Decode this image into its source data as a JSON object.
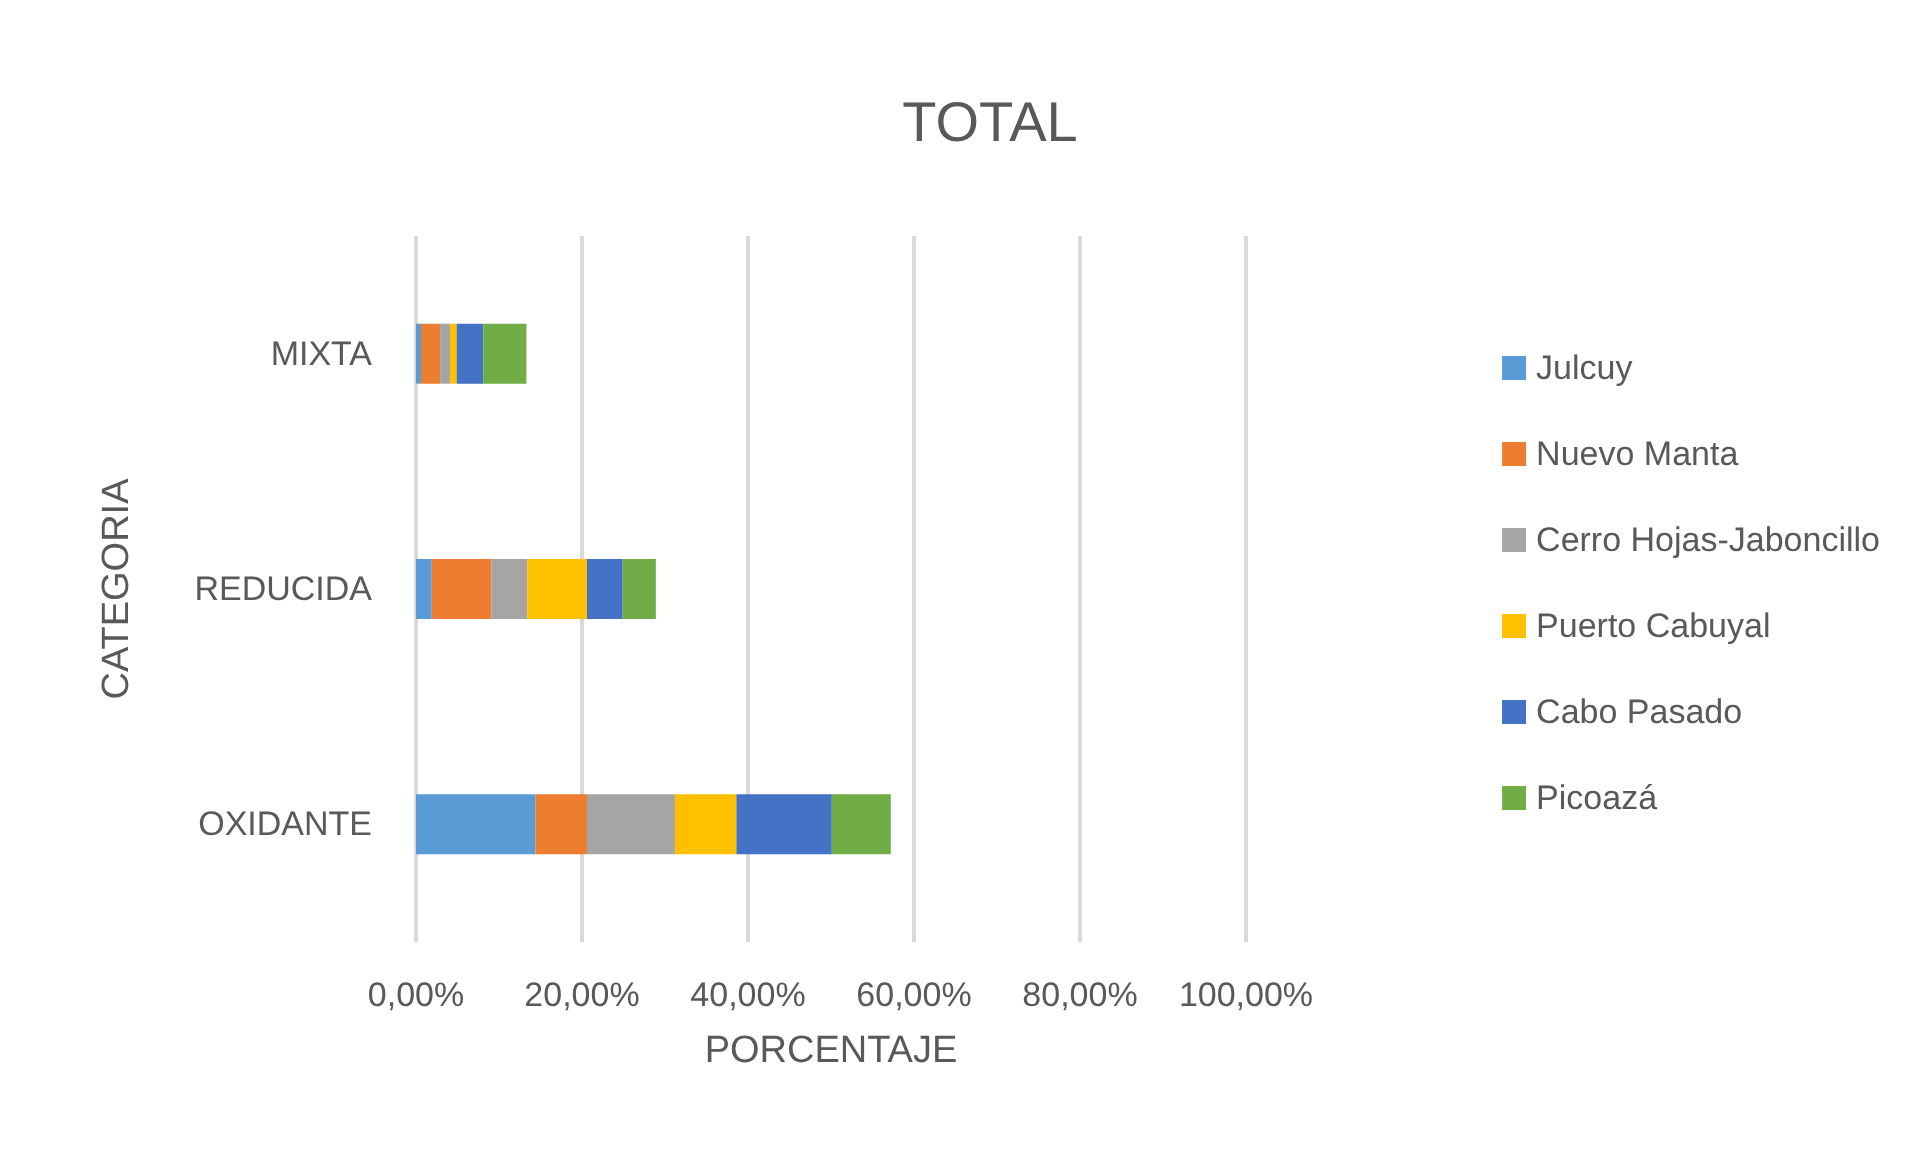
{
  "chart_data": {
    "type": "bar",
    "orientation": "horizontal",
    "stacked": true,
    "title": "TOTAL",
    "xlabel": "PORCENTAJE",
    "ylabel": "CATEGORIA",
    "categories": [
      "MIXTA",
      "REDUCIDA",
      "OXIDANTE"
    ],
    "series": [
      {
        "name": "Julcuy",
        "color": "#5b9bd5",
        "values": [
          0.6,
          1.9,
          14.4
        ]
      },
      {
        "name": "Nuevo Manta",
        "color": "#ed7d31",
        "values": [
          2.3,
          7.2,
          6.2
        ]
      },
      {
        "name": "Cerro Hojas-Jaboncillo",
        "color": "#a5a5a5",
        "values": [
          1.2,
          4.3,
          10.6
        ]
      },
      {
        "name": "Puerto Cabuyal",
        "color": "#ffc000",
        "values": [
          0.8,
          7.2,
          7.4
        ]
      },
      {
        "name": "Cabo Pasado",
        "color": "#4472c4",
        "values": [
          3.2,
          4.3,
          11.5
        ]
      },
      {
        "name": "Picoazá",
        "color": "#70ad47",
        "values": [
          5.2,
          4.0,
          7.1
        ]
      }
    ],
    "xlim": [
      0,
      100
    ],
    "xticks": [
      {
        "value": 0,
        "label": "0,00%"
      },
      {
        "value": 20,
        "label": "20,00%"
      },
      {
        "value": 40,
        "label": "40,00%"
      },
      {
        "value": 60,
        "label": "60,00%"
      },
      {
        "value": 80,
        "label": "80,00%"
      },
      {
        "value": 100,
        "label": "100,00%"
      }
    ],
    "grid": "x",
    "legend": "right"
  }
}
